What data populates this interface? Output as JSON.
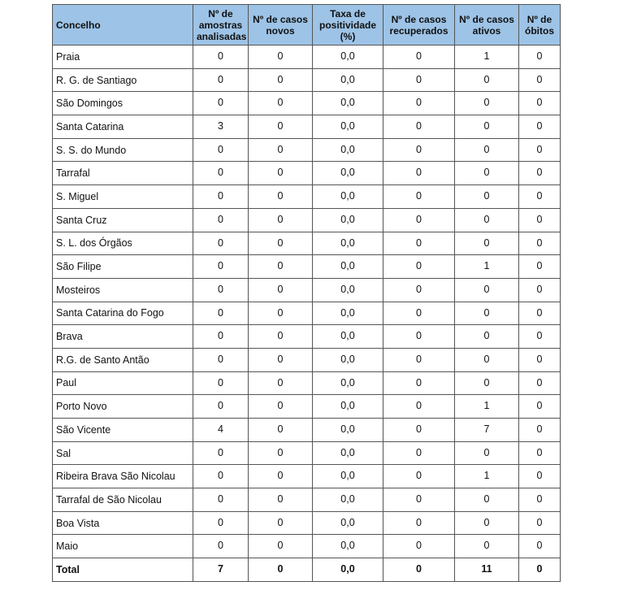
{
  "table": {
    "headers": [
      "Concelho",
      "Nº de amostras analisadas",
      "Nº de casos novos",
      "Taxa de positividade (%)",
      "Nº de casos recuperados",
      "Nº de casos ativos",
      "Nº de óbitos"
    ],
    "rows": [
      [
        "Praia",
        "0",
        "0",
        "0,0",
        "0",
        "1",
        "0"
      ],
      [
        "R. G. de Santiago",
        "0",
        "0",
        "0,0",
        "0",
        "0",
        "0"
      ],
      [
        "São Domingos",
        "0",
        "0",
        "0,0",
        "0",
        "0",
        "0"
      ],
      [
        "Santa Catarina",
        "3",
        "0",
        "0,0",
        "0",
        "0",
        "0"
      ],
      [
        "S. S. do Mundo",
        "0",
        "0",
        "0,0",
        "0",
        "0",
        "0"
      ],
      [
        "Tarrafal",
        "0",
        "0",
        "0,0",
        "0",
        "0",
        "0"
      ],
      [
        "S. Miguel",
        "0",
        "0",
        "0,0",
        "0",
        "0",
        "0"
      ],
      [
        "Santa Cruz",
        "0",
        "0",
        "0,0",
        "0",
        "0",
        "0"
      ],
      [
        "S. L. dos Órgãos",
        "0",
        "0",
        "0,0",
        "0",
        "0",
        "0"
      ],
      [
        "São Filipe",
        "0",
        "0",
        "0,0",
        "0",
        "1",
        "0"
      ],
      [
        "Mosteiros",
        "0",
        "0",
        "0,0",
        "0",
        "0",
        "0"
      ],
      [
        "Santa Catarina do Fogo",
        "0",
        "0",
        "0,0",
        "0",
        "0",
        "0"
      ],
      [
        "Brava",
        "0",
        "0",
        "0,0",
        "0",
        "0",
        "0"
      ],
      [
        "R.G. de Santo Antão",
        "0",
        "0",
        "0,0",
        "0",
        "0",
        "0"
      ],
      [
        "Paul",
        "0",
        "0",
        "0,0",
        "0",
        "0",
        "0"
      ],
      [
        "Porto Novo",
        "0",
        "0",
        "0,0",
        "0",
        "1",
        "0"
      ],
      [
        "São Vicente",
        "4",
        "0",
        "0,0",
        "0",
        "7",
        "0"
      ],
      [
        "Sal",
        "0",
        "0",
        "0,0",
        "0",
        "0",
        "0"
      ],
      [
        "Ribeira Brava São Nicolau",
        "0",
        "0",
        "0,0",
        "0",
        "1",
        "0"
      ],
      [
        "Tarrafal de São Nicolau",
        "0",
        "0",
        "0,0",
        "0",
        "0",
        "0"
      ],
      [
        "Boa Vista",
        "0",
        "0",
        "0,0",
        "0",
        "0",
        "0"
      ],
      [
        "Maio",
        "0",
        "0",
        "0,0",
        "0",
        "0",
        "0"
      ]
    ],
    "total": [
      "Total",
      "7",
      "0",
      "0,0",
      "0",
      "11",
      "0"
    ],
    "header_color": "#9dc3e6"
  }
}
